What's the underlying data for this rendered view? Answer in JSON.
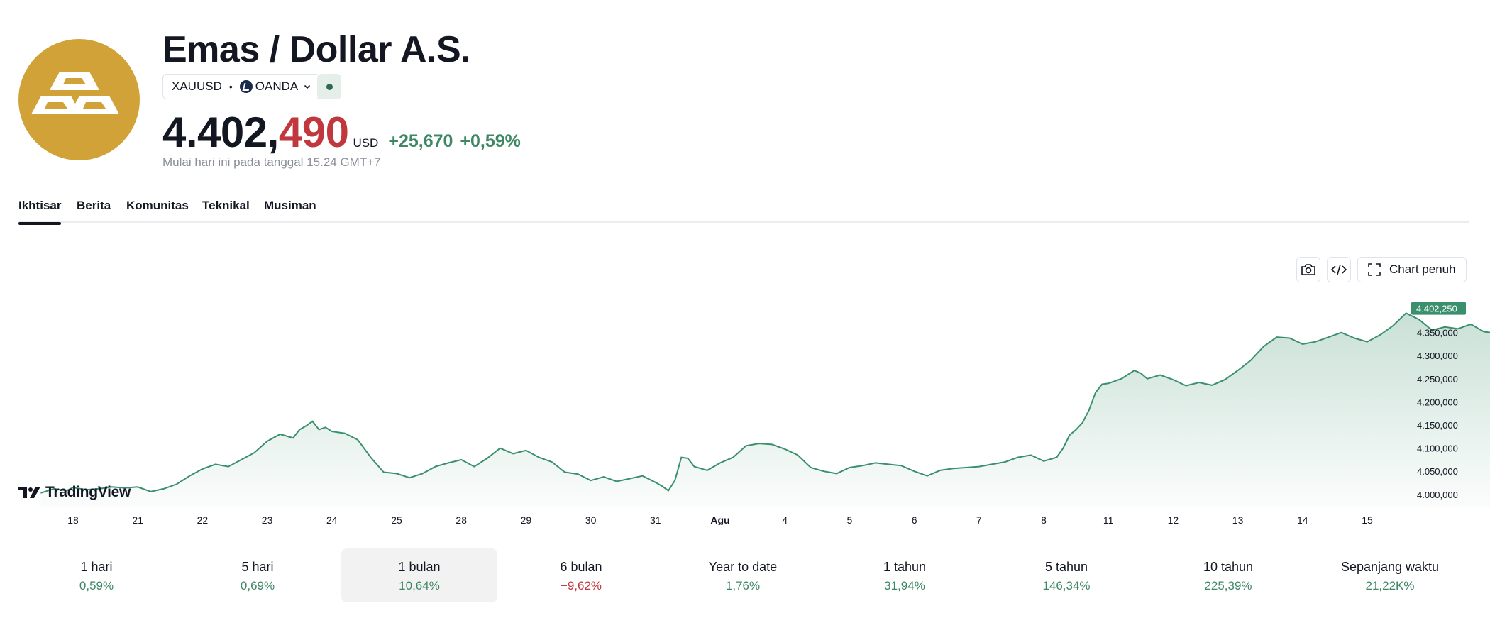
{
  "header": {
    "title": "Emas / Dollar A.S.",
    "symbol": "XAUUSD",
    "separator": "•",
    "exchange": "OANDA",
    "status": "market-open"
  },
  "price": {
    "main": "4.402,",
    "tail": "490",
    "currency": "USD",
    "change": "+25,670",
    "change_pct": "+0,59%",
    "note": "Mulai hari ini pada tanggal 15.24 GMT+7"
  },
  "tabs": [
    {
      "label": "Ikhtisar",
      "active": true
    },
    {
      "label": "Berita",
      "active": false
    },
    {
      "label": "Komunitas",
      "active": false
    },
    {
      "label": "Teknikal",
      "active": false
    },
    {
      "label": "Musiman",
      "active": false
    }
  ],
  "toolbar": {
    "fullscreen_label": "Chart penuh"
  },
  "brand": "TradingView",
  "colors": {
    "line": "#3a8f6c",
    "positive": "#3e8765",
    "negative": "#c1373e",
    "logo": "#d1a237"
  },
  "chart_data": {
    "type": "area",
    "x_ticks": [
      "18",
      "21",
      "22",
      "23",
      "24",
      "25",
      "28",
      "29",
      "30",
      "31",
      "Agu",
      "4",
      "5",
      "6",
      "7",
      "8",
      "11",
      "12",
      "13",
      "14",
      "15"
    ],
    "y_ticks": [
      "4.350,000",
      "4.300,000",
      "4.250,000",
      "4.200,000",
      "4.150,000",
      "4.100,000",
      "4.050,000",
      "4.000,000"
    ],
    "y_tick_values": [
      4350,
      4300,
      4250,
      4200,
      4150,
      4100,
      4050,
      4000
    ],
    "ylim": [
      3972,
      4440
    ],
    "last_label": "4.402,250",
    "last_value": 4402.25,
    "points": [
      [
        -0.5,
        4003
      ],
      [
        -0.3,
        4012
      ],
      [
        -0.1,
        4008
      ],
      [
        0.0,
        4015
      ],
      [
        0.2,
        4010
      ],
      [
        0.4,
        4012
      ],
      [
        0.6,
        4016
      ],
      [
        0.8,
        4014
      ],
      [
        1.0,
        4016
      ],
      [
        1.2,
        4006
      ],
      [
        1.4,
        4012
      ],
      [
        1.6,
        4022
      ],
      [
        1.8,
        4040
      ],
      [
        2.0,
        4055
      ],
      [
        2.2,
        4065
      ],
      [
        2.4,
        4060
      ],
      [
        2.6,
        4075
      ],
      [
        2.8,
        4090
      ],
      [
        3.0,
        4115
      ],
      [
        3.2,
        4130
      ],
      [
        3.4,
        4122
      ],
      [
        3.5,
        4140
      ],
      [
        3.6,
        4148
      ],
      [
        3.7,
        4158
      ],
      [
        3.8,
        4140
      ],
      [
        3.9,
        4145
      ],
      [
        4.0,
        4136
      ],
      [
        4.2,
        4132
      ],
      [
        4.4,
        4118
      ],
      [
        4.6,
        4080
      ],
      [
        4.8,
        4048
      ],
      [
        5.0,
        4045
      ],
      [
        5.2,
        4036
      ],
      [
        5.4,
        4045
      ],
      [
        5.6,
        4060
      ],
      [
        5.8,
        4068
      ],
      [
        6.0,
        4075
      ],
      [
        6.2,
        4060
      ],
      [
        6.4,
        4078
      ],
      [
        6.6,
        4100
      ],
      [
        6.8,
        4088
      ],
      [
        7.0,
        4095
      ],
      [
        7.2,
        4080
      ],
      [
        7.4,
        4070
      ],
      [
        7.6,
        4048
      ],
      [
        7.8,
        4044
      ],
      [
        8.0,
        4030
      ],
      [
        8.2,
        4038
      ],
      [
        8.4,
        4028
      ],
      [
        8.6,
        4034
      ],
      [
        8.8,
        4040
      ],
      [
        9.0,
        4026
      ],
      [
        9.1,
        4018
      ],
      [
        9.2,
        4008
      ],
      [
        9.3,
        4030
      ],
      [
        9.4,
        4080
      ],
      [
        9.5,
        4078
      ],
      [
        9.6,
        4060
      ],
      [
        9.8,
        4052
      ],
      [
        10.0,
        4068
      ],
      [
        10.2,
        4080
      ],
      [
        10.4,
        4105
      ],
      [
        10.6,
        4110
      ],
      [
        10.8,
        4108
      ],
      [
        11.0,
        4098
      ],
      [
        11.2,
        4085
      ],
      [
        11.4,
        4058
      ],
      [
        11.6,
        4050
      ],
      [
        11.8,
        4045
      ],
      [
        12.0,
        4058
      ],
      [
        12.2,
        4062
      ],
      [
        12.4,
        4068
      ],
      [
        12.6,
        4065
      ],
      [
        12.8,
        4062
      ],
      [
        13.0,
        4050
      ],
      [
        13.2,
        4040
      ],
      [
        13.4,
        4052
      ],
      [
        13.6,
        4056
      ],
      [
        13.8,
        4058
      ],
      [
        14.0,
        4060
      ],
      [
        14.2,
        4065
      ],
      [
        14.4,
        4070
      ],
      [
        14.6,
        4080
      ],
      [
        14.8,
        4085
      ],
      [
        15.0,
        4072
      ],
      [
        15.2,
        4080
      ],
      [
        15.3,
        4100
      ],
      [
        15.4,
        4128
      ],
      [
        15.5,
        4140
      ],
      [
        15.6,
        4155
      ],
      [
        15.7,
        4182
      ],
      [
        15.8,
        4220
      ],
      [
        15.9,
        4238
      ],
      [
        16.0,
        4240
      ],
      [
        16.2,
        4250
      ],
      [
        16.4,
        4268
      ],
      [
        16.5,
        4262
      ],
      [
        16.6,
        4250
      ],
      [
        16.8,
        4258
      ],
      [
        17.0,
        4248
      ],
      [
        17.2,
        4235
      ],
      [
        17.4,
        4242
      ],
      [
        17.6,
        4236
      ],
      [
        17.8,
        4248
      ],
      [
        18.0,
        4268
      ],
      [
        18.2,
        4290
      ],
      [
        18.4,
        4320
      ],
      [
        18.6,
        4340
      ],
      [
        18.8,
        4338
      ],
      [
        19.0,
        4325
      ],
      [
        19.2,
        4330
      ],
      [
        19.4,
        4340
      ],
      [
        19.6,
        4350
      ],
      [
        19.8,
        4338
      ],
      [
        20.0,
        4330
      ],
      [
        20.2,
        4345
      ],
      [
        20.4,
        4365
      ],
      [
        20.6,
        4392
      ],
      [
        20.8,
        4378
      ],
      [
        21.0,
        4355
      ],
      [
        21.2,
        4362
      ],
      [
        21.4,
        4358
      ],
      [
        21.6,
        4368
      ],
      [
        21.8,
        4352
      ],
      [
        22.0,
        4348
      ],
      [
        22.2,
        4362
      ],
      [
        22.4,
        4378
      ],
      [
        22.6,
        4382
      ],
      [
        22.8,
        4375
      ],
      [
        23.0,
        4392
      ],
      [
        23.2,
        4378
      ],
      [
        23.4,
        4385
      ],
      [
        23.6,
        4370
      ],
      [
        23.8,
        4368
      ],
      [
        24.0,
        4355
      ],
      [
        24.2,
        4365
      ],
      [
        24.4,
        4360
      ],
      [
        24.6,
        4348
      ],
      [
        24.8,
        4350
      ],
      [
        25.0,
        4330
      ],
      [
        25.2,
        4320
      ],
      [
        25.4,
        4330
      ],
      [
        25.6,
        4342
      ],
      [
        25.8,
        4355
      ],
      [
        26.0,
        4365
      ],
      [
        26.2,
        4372
      ],
      [
        26.4,
        4376
      ],
      [
        26.6,
        4370
      ],
      [
        26.8,
        4380
      ],
      [
        27.0,
        4385
      ],
      [
        27.2,
        4395
      ],
      [
        27.4,
        4392
      ],
      [
        27.6,
        4402.25
      ]
    ]
  },
  "periods": [
    {
      "label": "1 hari",
      "value": "0,59%",
      "negative": false,
      "selected": false
    },
    {
      "label": "5 hari",
      "value": "0,69%",
      "negative": false,
      "selected": false
    },
    {
      "label": "1 bulan",
      "value": "10,64%",
      "negative": false,
      "selected": true
    },
    {
      "label": "6 bulan",
      "value": "−9,62%",
      "negative": true,
      "selected": false
    },
    {
      "label": "Year to date",
      "value": "1,76%",
      "negative": false,
      "selected": false
    },
    {
      "label": "1 tahun",
      "value": "31,94%",
      "negative": false,
      "selected": false
    },
    {
      "label": "5 tahun",
      "value": "146,34%",
      "negative": false,
      "selected": false
    },
    {
      "label": "10 tahun",
      "value": "225,39%",
      "negative": false,
      "selected": false
    },
    {
      "label": "Sepanjang waktu",
      "value": "21,22K%",
      "negative": false,
      "selected": false
    }
  ]
}
